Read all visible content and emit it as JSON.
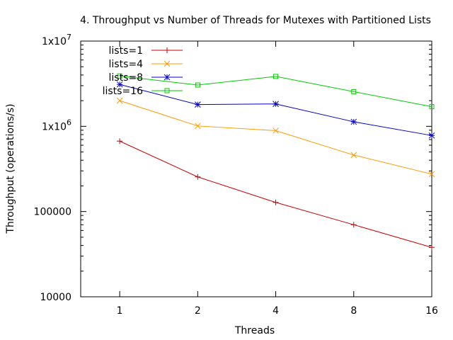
{
  "chart_data": {
    "type": "line",
    "title": "4. Throughput vs Number of Threads for Mutexes with Partitioned Lists",
    "xlabel": "Threads",
    "ylabel": "Throughput (operations/s)",
    "x": [
      1,
      2,
      4,
      8,
      16
    ],
    "x_tick_labels": [
      "1",
      "2",
      "4",
      "8",
      "16"
    ],
    "x_scale": "log2",
    "y_scale": "log10",
    "ylim": [
      10000,
      10000000
    ],
    "y_ticks": [
      10000,
      100000,
      1000000,
      10000000
    ],
    "y_tick_labels": [
      {
        "main": "10000",
        "sup": ""
      },
      {
        "main": "100000",
        "sup": ""
      },
      {
        "main": "1x10",
        "sup": "6"
      },
      {
        "main": "1x10",
        "sup": "7"
      }
    ],
    "grid": false,
    "legend_position": "top-left",
    "series": [
      {
        "name": "lists=1",
        "color": "#cc0000",
        "marker": "plus",
        "values": [
          670000,
          255000,
          128000,
          70000,
          38000
        ]
      },
      {
        "name": "lists=4",
        "color": "#ff9900",
        "marker": "cross",
        "values": [
          2000000,
          1010000,
          890000,
          460000,
          275000
        ]
      },
      {
        "name": "lists=8",
        "color": "#0000cc",
        "marker": "star",
        "values": [
          3100000,
          1800000,
          1830000,
          1130000,
          780000
        ]
      },
      {
        "name": "lists=16",
        "color": "#00cc00",
        "marker": "square-open",
        "values": [
          3900000,
          3050000,
          3850000,
          2550000,
          1700000
        ]
      }
    ]
  }
}
